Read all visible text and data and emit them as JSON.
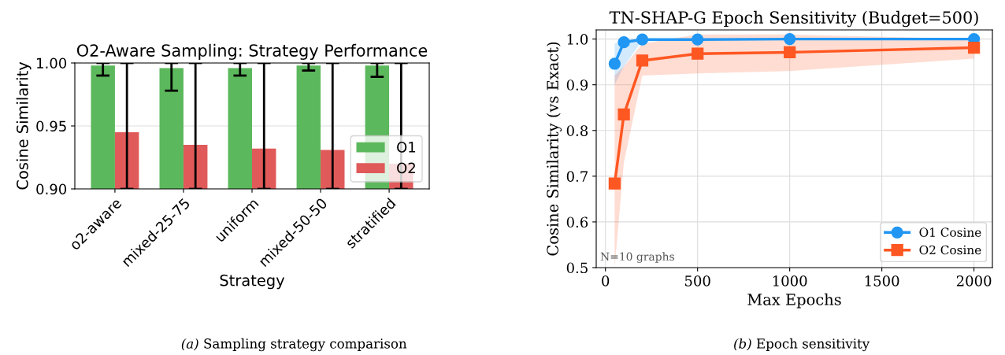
{
  "chart_data": [
    {
      "type": "bar",
      "title": "O2-Aware Sampling: Strategy Performance",
      "xlabel": "Strategy",
      "ylabel": "Cosine Similarity",
      "categories": [
        "o2-aware",
        "mixed-25-75",
        "uniform",
        "mixed-50-50",
        "stratified"
      ],
      "series": [
        {
          "name": "O1",
          "color": "#5cb85c",
          "values": [
            0.998,
            0.996,
            0.996,
            0.998,
            0.998
          ],
          "errors": [
            [
              0.99,
              1.0
            ],
            [
              0.978,
              1.0
            ],
            [
              0.99,
              1.0
            ],
            [
              0.994,
              1.0
            ],
            [
              0.989,
              1.0
            ]
          ]
        },
        {
          "name": "O2",
          "color": "#e05a5a",
          "values": [
            0.945,
            0.935,
            0.932,
            0.931,
            0.92
          ],
          "errors": [
            [
              0.9,
              1.0
            ],
            [
              0.9,
              1.0
            ],
            [
              0.9,
              1.0
            ],
            [
              0.9,
              1.0
            ],
            [
              0.9,
              1.0
            ]
          ]
        }
      ],
      "ylim": [
        0.9,
        1.0
      ],
      "yticks": [
        {
          "value": 0.9,
          "label": "0.90"
        },
        {
          "value": 0.95,
          "label": "0.95"
        },
        {
          "value": 1.0,
          "label": "1.00"
        }
      ],
      "grid": "y",
      "legend": "bottom right",
      "annotations": [
        "(a) Sampling strategy comparison"
      ]
    },
    {
      "type": "line",
      "title": "TN-SHAP-G Epoch Sensitivity (Budget=500)",
      "xlabel": "Max Epochs",
      "ylabel": "Cosine Similarity (vs Exact)",
      "x": [
        50,
        100,
        200,
        500,
        1000,
        2000
      ],
      "series": [
        {
          "name": "O1 Cosine",
          "color": "#2196f3",
          "marker": "circle",
          "values": [
            0.946,
            0.993,
            0.999,
            0.999,
            1.0,
            1.0
          ],
          "lower": [
            0.9,
            0.94,
            0.997,
            0.998,
            0.999,
            0.999
          ],
          "upper": [
            0.99,
            1.0,
            1.0,
            1.0,
            1.0,
            1.0
          ]
        },
        {
          "name": "O2 Cosine",
          "color": "#ff5722",
          "marker": "square",
          "values": [
            0.684,
            0.835,
            0.953,
            0.968,
            0.971,
            0.981
          ],
          "lower": [
            0.5,
            0.73,
            0.92,
            0.925,
            0.93,
            0.957
          ],
          "upper": [
            0.92,
            0.94,
            0.99,
            1.01,
            1.01,
            1.0
          ]
        }
      ],
      "xlim": [
        -50,
        2100
      ],
      "xticks": [
        0,
        500,
        1000,
        1500,
        2000
      ],
      "ylim": [
        0.5,
        1.02
      ],
      "yticks": [
        {
          "value": 0.5,
          "label": "0.5"
        },
        {
          "value": 0.6,
          "label": "0.6"
        },
        {
          "value": 0.7,
          "label": "0.7"
        },
        {
          "value": 0.8,
          "label": "0.8"
        },
        {
          "value": 0.9,
          "label": "0.9"
        },
        {
          "value": 1.0,
          "label": "1.0"
        }
      ],
      "grid": true,
      "legend": "bottom right",
      "line_style": "solid",
      "annotations": [
        "N=10 graphs",
        "(b) Epoch sensitivity"
      ]
    }
  ]
}
